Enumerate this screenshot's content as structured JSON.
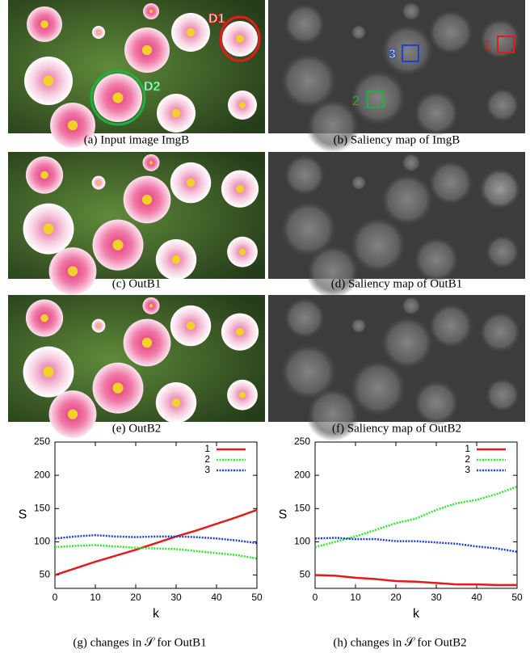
{
  "panels": [
    {
      "caption": "(a) Input image ImgB"
    },
    {
      "caption": "(b) Saliency map of ImgB"
    },
    {
      "caption": "(c) OutB1"
    },
    {
      "caption": "(d) Saliency map of OutB1"
    },
    {
      "caption": "(e) OutB2"
    },
    {
      "caption": "(f) Saliency map of OutB2"
    }
  ],
  "annotations": {
    "d1": "D1",
    "d2": "D2",
    "r1": "1",
    "r2": "2",
    "r3": "3"
  },
  "chart_data": [
    {
      "type": "line",
      "caption": "(g) changes in 𝒮 for OutB1",
      "x_label": "k",
      "y_label": "S",
      "x": [
        0,
        5,
        10,
        15,
        20,
        25,
        30,
        35,
        40,
        45,
        50
      ],
      "series": [
        {
          "name": "1",
          "color": "#e41a1c",
          "line_style": "solid",
          "values": [
            50,
            60,
            70,
            79,
            88,
            98,
            108,
            117,
            127,
            137,
            148
          ]
        },
        {
          "name": "2",
          "color": "#2ee62e",
          "line_style": "dotted",
          "values": [
            92,
            94,
            95,
            93,
            91,
            90,
            89,
            86,
            83,
            80,
            75
          ]
        },
        {
          "name": "3",
          "color": "#1f3fd0",
          "line_style": "dotted",
          "values": [
            105,
            108,
            110,
            108,
            107,
            108,
            108,
            107,
            105,
            102,
            98
          ]
        }
      ],
      "xlim": [
        0,
        50
      ],
      "xticks": [
        0,
        10,
        20,
        30,
        40,
        50
      ],
      "ylim": [
        30,
        250
      ],
      "yticks": [
        50,
        100,
        150,
        200,
        250
      ],
      "legend": "top-right"
    },
    {
      "type": "line",
      "caption": "(h) changes in 𝒮 for OutB2",
      "x_label": "k",
      "y_label": "S",
      "x": [
        0,
        5,
        10,
        15,
        20,
        25,
        30,
        35,
        40,
        45,
        50
      ],
      "series": [
        {
          "name": "1",
          "color": "#e41a1c",
          "line_style": "solid",
          "values": [
            50,
            49,
            46,
            44,
            41,
            40,
            38,
            36,
            36,
            35,
            35
          ]
        },
        {
          "name": "2",
          "color": "#2ee62e",
          "line_style": "dotted",
          "values": [
            92,
            100,
            108,
            118,
            128,
            135,
            148,
            158,
            163,
            172,
            183
          ]
        },
        {
          "name": "3",
          "color": "#1f3fd0",
          "line_style": "dotted",
          "values": [
            105,
            106,
            104,
            104,
            101,
            101,
            99,
            97,
            93,
            90,
            85
          ]
        }
      ],
      "xlim": [
        0,
        50
      ],
      "xticks": [
        0,
        10,
        20,
        30,
        40,
        50
      ],
      "ylim": [
        30,
        250
      ],
      "yticks": [
        50,
        100,
        150,
        200,
        250
      ],
      "legend": "top-right"
    }
  ]
}
